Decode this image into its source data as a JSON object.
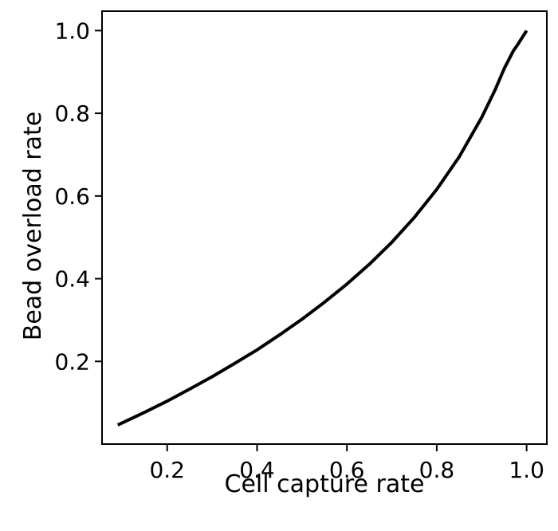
{
  "chart_data": {
    "type": "line",
    "title": "",
    "xlabel": "Cell capture rate",
    "ylabel": "Bead overload rate",
    "xlim": [
      0.055,
      1.045
    ],
    "ylim": [
      0.0,
      1.047
    ],
    "xticks": [
      0.2,
      0.4,
      0.6,
      0.8,
      1.0
    ],
    "xtick_labels": [
      "0.2",
      "0.4",
      "0.6",
      "0.8",
      "1.0"
    ],
    "yticks": [
      0.2,
      0.4,
      0.6,
      0.8,
      1.0
    ],
    "ytick_labels": [
      "0.2",
      "0.4",
      "0.6",
      "0.8",
      "1.0"
    ],
    "grid": false,
    "legend": "none",
    "line_color": "#000000",
    "series": [
      {
        "x": [
          0.09,
          0.15,
          0.2,
          0.25,
          0.3,
          0.35,
          0.4,
          0.45,
          0.5,
          0.55,
          0.6,
          0.65,
          0.7,
          0.75,
          0.8,
          0.85,
          0.9,
          0.93,
          0.95,
          0.97,
          0.98,
          0.99,
          1.0
        ],
        "y": [
          0.046,
          0.077,
          0.104,
          0.133,
          0.163,
          0.195,
          0.228,
          0.264,
          0.302,
          0.343,
          0.387,
          0.435,
          0.488,
          0.548,
          0.616,
          0.695,
          0.79,
          0.857,
          0.908,
          0.95,
          0.966,
          0.983,
          1.0
        ]
      }
    ]
  }
}
